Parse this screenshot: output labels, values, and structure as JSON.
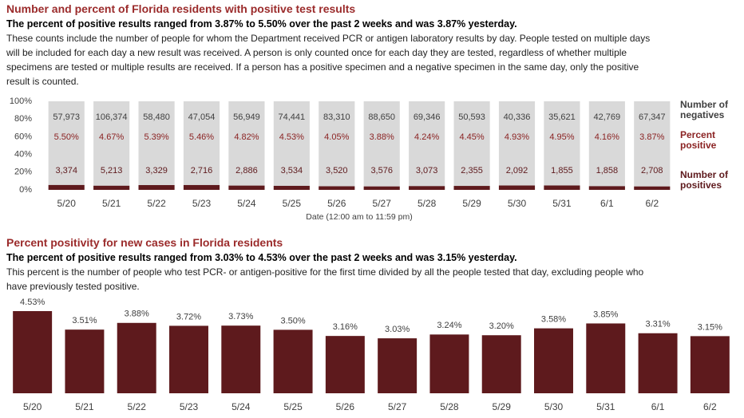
{
  "chart_data": [
    {
      "type": "bar",
      "stacking": "percent",
      "title": "Number and percent of Florida residents with positive test results",
      "subtitle": "The percent of positive results ranged from 3.87% to 5.50% over the past 2 weeks and was 3.87% yesterday.",
      "description": "These counts include the number of people for whom the Department received PCR or antigen laboratory results by day. People tested on multiple days will be included for each day a new result was received. A person is only counted once for each day they are tested, regardless of whether multiple specimens are tested or multiple results are received. If a person has a positive specimen and a negative specimen in the same day, only the positive result is counted.",
      "x_label": "Date (12:00 am to 11:59 pm)",
      "categories": [
        "5/20",
        "5/21",
        "5/22",
        "5/23",
        "5/24",
        "5/25",
        "5/26",
        "5/27",
        "5/28",
        "5/29",
        "5/30",
        "5/31",
        "6/1",
        "6/2"
      ],
      "ylim": [
        0,
        100
      ],
      "yticks": [
        {
          "value": 0,
          "label": "0%"
        },
        {
          "value": 20,
          "label": "20%"
        },
        {
          "value": 40,
          "label": "40%"
        },
        {
          "value": 60,
          "label": "60%"
        },
        {
          "value": 80,
          "label": "80%"
        },
        {
          "value": 100,
          "label": "100%"
        }
      ],
      "series": [
        {
          "name": "Number of negatives",
          "color": "#d9d9d9",
          "text_color": "#404040",
          "values": [
            57973,
            106374,
            58480,
            47054,
            56949,
            74441,
            83310,
            88650,
            69346,
            50593,
            40336,
            35621,
            42769,
            67347
          ],
          "value_labels": [
            "57,973",
            "106,374",
            "58,480",
            "47,054",
            "56,949",
            "74,441",
            "83,310",
            "88,650",
            "69,346",
            "50,593",
            "40,336",
            "35,621",
            "42,769",
            "67,347"
          ]
        },
        {
          "name": "Number of positives",
          "color": "#5e1a1d",
          "text_color": "#5e1a1d",
          "values": [
            3374,
            5213,
            3329,
            2716,
            2886,
            3534,
            3520,
            3576,
            3073,
            2355,
            2092,
            1855,
            1858,
            2708
          ],
          "value_labels": [
            "3,374",
            "5,213",
            "3,329",
            "2,716",
            "2,886",
            "3,534",
            "3,520",
            "3,576",
            "3,073",
            "2,355",
            "2,092",
            "1,855",
            "1,858",
            "2,708"
          ]
        },
        {
          "name": "Percent positive",
          "color": "#8b2323",
          "text_color": "#8b2323",
          "values": [
            5.5,
            4.67,
            5.39,
            5.46,
            4.82,
            4.53,
            4.05,
            3.88,
            4.24,
            4.45,
            4.93,
            4.95,
            4.16,
            3.87
          ],
          "value_labels": [
            "5.50%",
            "4.67%",
            "5.39%",
            "5.46%",
            "4.82%",
            "4.53%",
            "4.05%",
            "3.88%",
            "4.24%",
            "4.45%",
            "4.93%",
            "4.95%",
            "4.16%",
            "3.87%"
          ]
        }
      ]
    },
    {
      "type": "bar",
      "title": "Percent positivity for new cases in Florida residents",
      "subtitle": "The percent of positive results ranged from 3.03% to 4.53% over the past 2 weeks and was 3.15% yesterday.",
      "description": "This percent is the number of people who test PCR- or antigen-positive for the first time divided by all the people tested that day, excluding people who have previously tested positive.",
      "categories": [
        "5/20",
        "5/21",
        "5/22",
        "5/23",
        "5/24",
        "5/25",
        "5/26",
        "5/27",
        "5/28",
        "5/29",
        "5/30",
        "5/31",
        "6/1",
        "6/2"
      ],
      "color": "#5e1a1d",
      "values": [
        4.53,
        3.51,
        3.88,
        3.72,
        3.73,
        3.5,
        3.16,
        3.03,
        3.24,
        3.2,
        3.58,
        3.85,
        3.31,
        3.15
      ],
      "value_labels": [
        "4.53%",
        "3.51%",
        "3.88%",
        "3.72%",
        "3.73%",
        "3.50%",
        "3.16%",
        "3.03%",
        "3.24%",
        "3.20%",
        "3.58%",
        "3.85%",
        "3.31%",
        "3.15%"
      ]
    }
  ]
}
